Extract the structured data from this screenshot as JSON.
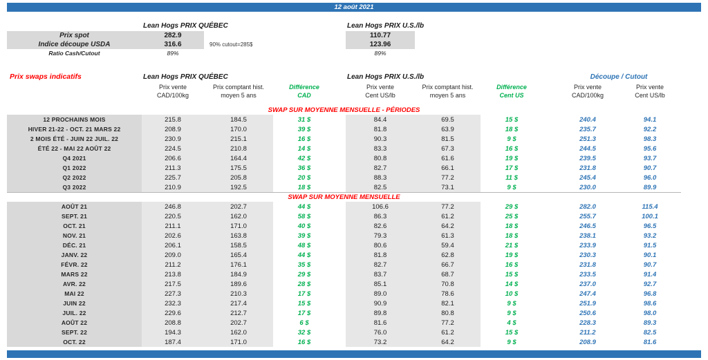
{
  "header": {
    "date": "12 août 2021"
  },
  "colors": {
    "banner_blue": "#2E74B5",
    "heading_red": "#FF0000",
    "difference_green": "#00B050",
    "cutout_blue": "#2E74B5",
    "label_gray": "#D9D9D9",
    "value_gray": "#E7E7E7"
  },
  "spot": {
    "quebec_title": "Lean Hogs PRIX QUÉBEC",
    "us_title": "Lean Hogs PRIX U.S./lb",
    "prix_spot": {
      "label": "Prix spot",
      "quebec": "282.9",
      "us": "110.77"
    },
    "indice": {
      "label": "Indice découpe USDA",
      "quebec": "316.6",
      "note": "90% cutout=285$",
      "us": "123.96"
    },
    "ratio": {
      "label": "Ratio Cash/Cutout",
      "quebec": "89%",
      "us": "89%"
    }
  },
  "swaps": {
    "title": "Prix swaps indicatifs",
    "quebec_title": "Lean Hogs PRIX QUÉBEC",
    "us_title": "Lean Hogs PRIX U.S./lb",
    "cutout_title": "Découpe / Cutout",
    "columns": {
      "q_vente": {
        "l1": "Prix vente",
        "l2": "CAD/100kg"
      },
      "q_hist": {
        "l1": "Prix comptant hist.",
        "l2": "moyen 5 ans"
      },
      "q_diff": {
        "l1": "Différence",
        "l2": "CAD"
      },
      "us_vente": {
        "l1": "Prix vente",
        "l2": "Cent US/lb"
      },
      "us_hist": {
        "l1": "Prix comptant hist.",
        "l2": "moyen 5 ans"
      },
      "us_diff": {
        "l1": "Différence",
        "l2": "Cent US"
      },
      "cut_cad": {
        "l1": "Prix vente",
        "l2": "CAD/100kg"
      },
      "cut_us": {
        "l1": "Prix vente",
        "l2": "Cent US/lb"
      }
    },
    "sections": [
      {
        "heading": "SWAP SUR MOYENNE MENSUELLE - PÉRIODES",
        "rows": [
          {
            "label": "12 PROCHAINS MOIS",
            "q_vente": "215.8",
            "q_hist": "184.5",
            "q_diff": "31 $",
            "us_vente": "84.4",
            "us_hist": "69.5",
            "us_diff": "15 $",
            "cut_cad": "240.4",
            "cut_us": "94.1"
          },
          {
            "label": "HIVER 21-22 - OCT. 21 MARS 22",
            "q_vente": "208.9",
            "q_hist": "170.0",
            "q_diff": "39 $",
            "us_vente": "81.8",
            "us_hist": "63.9",
            "us_diff": "18 $",
            "cut_cad": "235.7",
            "cut_us": "92.2"
          },
          {
            "label": "2 MOIS ÉTÉ - JUIN 22 JUIL. 22",
            "q_vente": "230.9",
            "q_hist": "215.1",
            "q_diff": "16 $",
            "us_vente": "90.3",
            "us_hist": "81.5",
            "us_diff": "9 $",
            "cut_cad": "251.3",
            "cut_us": "98.3"
          },
          {
            "label": "ÉTÉ 22 - MAI 22 AOÛT 22",
            "q_vente": "224.5",
            "q_hist": "210.8",
            "q_diff": "14 $",
            "us_vente": "83.3",
            "us_hist": "67.3",
            "us_diff": "16 $",
            "cut_cad": "244.5",
            "cut_us": "95.6"
          },
          {
            "label": "Q4 2021",
            "q_vente": "206.6",
            "q_hist": "164.4",
            "q_diff": "42 $",
            "us_vente": "80.8",
            "us_hist": "61.6",
            "us_diff": "19 $",
            "cut_cad": "239.5",
            "cut_us": "93.7"
          },
          {
            "label": "Q1 2022",
            "q_vente": "211.3",
            "q_hist": "175.5",
            "q_diff": "36 $",
            "us_vente": "82.7",
            "us_hist": "66.1",
            "us_diff": "17 $",
            "cut_cad": "231.8",
            "cut_us": "90.7"
          },
          {
            "label": "Q2 2022",
            "q_vente": "225.7",
            "q_hist": "205.8",
            "q_diff": "20 $",
            "us_vente": "88.3",
            "us_hist": "77.2",
            "us_diff": "11 $",
            "cut_cad": "245.4",
            "cut_us": "96.0"
          },
          {
            "label": "Q3 2022",
            "q_vente": "210.9",
            "q_hist": "192.5",
            "q_diff": "18 $",
            "us_vente": "82.5",
            "us_hist": "73.1",
            "us_diff": "9 $",
            "cut_cad": "230.0",
            "cut_us": "89.9"
          }
        ]
      },
      {
        "heading": "SWAP SUR MOYENNE MENSUELLE",
        "rows": [
          {
            "label": "AOÛT 21",
            "q_vente": "246.8",
            "q_hist": "202.7",
            "q_diff": "44 $",
            "us_vente": "106.6",
            "us_hist": "77.2",
            "us_diff": "29 $",
            "cut_cad": "282.0",
            "cut_us": "115.4"
          },
          {
            "label": "SEPT. 21",
            "q_vente": "220.5",
            "q_hist": "162.0",
            "q_diff": "58 $",
            "us_vente": "86.3",
            "us_hist": "61.2",
            "us_diff": "25 $",
            "cut_cad": "255.7",
            "cut_us": "100.1"
          },
          {
            "label": "OCT. 21",
            "q_vente": "211.1",
            "q_hist": "171.0",
            "q_diff": "40 $",
            "us_vente": "82.6",
            "us_hist": "64.2",
            "us_diff": "18 $",
            "cut_cad": "246.5",
            "cut_us": "96.5"
          },
          {
            "label": "NOV. 21",
            "q_vente": "202.6",
            "q_hist": "163.8",
            "q_diff": "39 $",
            "us_vente": "79.3",
            "us_hist": "61.3",
            "us_diff": "18 $",
            "cut_cad": "238.1",
            "cut_us": "93.2"
          },
          {
            "label": "DÉC. 21",
            "q_vente": "206.1",
            "q_hist": "158.5",
            "q_diff": "48 $",
            "us_vente": "80.6",
            "us_hist": "59.4",
            "us_diff": "21 $",
            "cut_cad": "233.9",
            "cut_us": "91.5"
          },
          {
            "label": "JANV. 22",
            "q_vente": "209.0",
            "q_hist": "165.4",
            "q_diff": "44 $",
            "us_vente": "81.8",
            "us_hist": "62.8",
            "us_diff": "19 $",
            "cut_cad": "230.3",
            "cut_us": "90.1"
          },
          {
            "label": "FÉVR. 22",
            "q_vente": "211.2",
            "q_hist": "176.1",
            "q_diff": "35 $",
            "us_vente": "82.7",
            "us_hist": "66.7",
            "us_diff": "16 $",
            "cut_cad": "231.8",
            "cut_us": "90.7"
          },
          {
            "label": "MARS 22",
            "q_vente": "213.8",
            "q_hist": "184.9",
            "q_diff": "29 $",
            "us_vente": "83.7",
            "us_hist": "68.7",
            "us_diff": "15 $",
            "cut_cad": "233.5",
            "cut_us": "91.4"
          },
          {
            "label": "AVR. 22",
            "q_vente": "217.5",
            "q_hist": "189.6",
            "q_diff": "28 $",
            "us_vente": "85.1",
            "us_hist": "70.8",
            "us_diff": "14 $",
            "cut_cad": "237.0",
            "cut_us": "92.7"
          },
          {
            "label": "MAI 22",
            "q_vente": "227.3",
            "q_hist": "210.3",
            "q_diff": "17 $",
            "us_vente": "89.0",
            "us_hist": "78.6",
            "us_diff": "10 $",
            "cut_cad": "247.4",
            "cut_us": "96.8"
          },
          {
            "label": "JUIN 22",
            "q_vente": "232.3",
            "q_hist": "217.4",
            "q_diff": "15 $",
            "us_vente": "90.9",
            "us_hist": "82.1",
            "us_diff": "9 $",
            "cut_cad": "251.9",
            "cut_us": "98.6"
          },
          {
            "label": "JUIL. 22",
            "q_vente": "229.6",
            "q_hist": "212.7",
            "q_diff": "17 $",
            "us_vente": "89.8",
            "us_hist": "80.8",
            "us_diff": "9 $",
            "cut_cad": "250.6",
            "cut_us": "98.0"
          },
          {
            "label": "AOÛT 22",
            "q_vente": "208.8",
            "q_hist": "202.7",
            "q_diff": "6 $",
            "us_vente": "81.6",
            "us_hist": "77.2",
            "us_diff": "4 $",
            "cut_cad": "228.3",
            "cut_us": "89.3"
          },
          {
            "label": "SEPT. 22",
            "q_vente": "194.3",
            "q_hist": "162.0",
            "q_diff": "32 $",
            "us_vente": "76.0",
            "us_hist": "61.2",
            "us_diff": "15 $",
            "cut_cad": "211.2",
            "cut_us": "82.5"
          },
          {
            "label": "OCT. 22",
            "q_vente": "187.4",
            "q_hist": "171.0",
            "q_diff": "16 $",
            "us_vente": "73.2",
            "us_hist": "64.2",
            "us_diff": "9 $",
            "cut_cad": "208.9",
            "cut_us": "81.6"
          }
        ]
      }
    ]
  }
}
